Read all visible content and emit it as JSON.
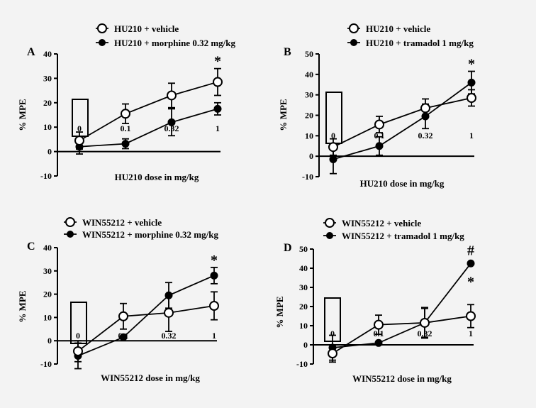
{
  "chart_data": [
    {
      "type": "line",
      "panel_label": "A",
      "ylabel": "% MPE",
      "xlabel": "HU210 dose in mg/kg",
      "ylim": [
        -10,
        40
      ],
      "yticks": [
        -10,
        0,
        10,
        20,
        30,
        40
      ],
      "categories": [
        "0",
        "0.1",
        "0.32",
        "1"
      ],
      "series": [
        {
          "name": "HU210 + vehicle",
          "marker": "open",
          "values": [
            4.5,
            15.5,
            23.0,
            28.5
          ],
          "errors": [
            3.5,
            4.0,
            5.0,
            5.5
          ]
        },
        {
          "name": "HU210 + morphine 0.32 mg/kg",
          "marker": "filled",
          "values": [
            2.0,
            3.2,
            12.0,
            17.5
          ],
          "errors": [
            3.0,
            2.0,
            5.5,
            2.5
          ]
        }
      ],
      "annotations": [
        {
          "category": "1",
          "text": "*"
        }
      ]
    },
    {
      "type": "line",
      "panel_label": "B",
      "ylabel": "% MPE",
      "xlabel": "HU210 dose in mg/kg",
      "ylim": [
        -10,
        50
      ],
      "yticks": [
        -10,
        0,
        10,
        20,
        30,
        40,
        50
      ],
      "categories": [
        "0",
        "0.1",
        "0.32",
        "1"
      ],
      "series": [
        {
          "name": "HU210 + vehicle",
          "marker": "open",
          "values": [
            4.5,
            15.5,
            23.5,
            28.5
          ],
          "errors": [
            4.0,
            4.0,
            4.5,
            4.0
          ]
        },
        {
          "name": "HU210 + tramadol 1 mg/kg",
          "marker": "filled",
          "values": [
            -1.5,
            5.0,
            19.5,
            36.0
          ],
          "errors": [
            7.0,
            4.5,
            6.0,
            5.5
          ]
        }
      ],
      "annotations": [
        {
          "category": "1",
          "text": "*"
        }
      ]
    },
    {
      "type": "line",
      "panel_label": "C",
      "ylabel": "% MPE",
      "xlabel": "WIN55212 dose in mg/kg",
      "ylim": [
        -10,
        40
      ],
      "yticks": [
        -10,
        0,
        10,
        20,
        30,
        40
      ],
      "categories": [
        "0",
        "0.1",
        "0.32",
        "1"
      ],
      "series": [
        {
          "name": "WIN55212 + vehicle",
          "marker": "open",
          "values": [
            -4.5,
            10.5,
            12.0,
            15.0
          ],
          "errors": [
            4.5,
            5.5,
            8.0,
            6.0
          ]
        },
        {
          "name": "WIN55212 + morphine 0.32 mg/kg",
          "marker": "filled",
          "values": [
            -6.5,
            1.5,
            19.5,
            28.0
          ],
          "errors": [
            5.5,
            0,
            5.5,
            3.5
          ]
        }
      ],
      "annotations": [
        {
          "category": "1",
          "text": "*"
        }
      ]
    },
    {
      "type": "line",
      "panel_label": "D",
      "ylabel": "% MPE",
      "xlabel": "WIN55212 dose in mg/kg",
      "ylim": [
        -10,
        50
      ],
      "yticks": [
        -10,
        0,
        10,
        20,
        30,
        40,
        50
      ],
      "categories": [
        "0",
        "0.1",
        "0.32",
        "1"
      ],
      "series": [
        {
          "name": "WIN55212 + vehicle",
          "marker": "open",
          "values": [
            -4.5,
            10.5,
            11.5,
            15.0
          ],
          "errors": [
            4.5,
            5.0,
            8.0,
            6.0
          ]
        },
        {
          "name": "WIN55212 + tramadol 1 mg/kg",
          "marker": "filled",
          "values": [
            -1.5,
            1.0,
            11.5,
            42.5
          ],
          "errors": [
            6.5,
            0,
            7.5,
            0
          ]
        }
      ],
      "annotations": [
        {
          "category": "1",
          "text": "#"
        },
        {
          "category": "1",
          "text": "*"
        }
      ]
    }
  ]
}
